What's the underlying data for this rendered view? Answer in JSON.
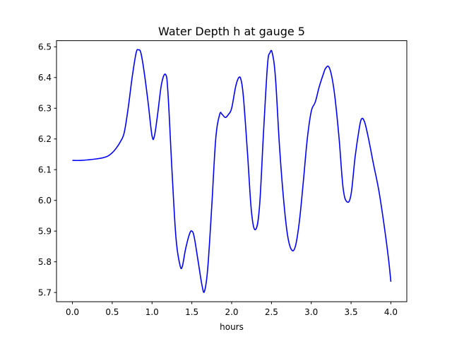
{
  "chart_data": {
    "type": "line",
    "title": "Water Depth h at gauge 5",
    "xlabel": "hours",
    "ylabel": "",
    "xlim": [
      -0.2,
      4.2
    ],
    "ylim": [
      5.67,
      6.52
    ],
    "grid": false,
    "x_ticks": [
      0.0,
      0.5,
      1.0,
      1.5,
      2.0,
      2.5,
      3.0,
      3.5,
      4.0
    ],
    "x_tick_labels": [
      "0.0",
      "0.5",
      "1.0",
      "1.5",
      "2.0",
      "2.5",
      "3.0",
      "3.5",
      "4.0"
    ],
    "y_ticks": [
      5.7,
      5.8,
      5.9,
      6.0,
      6.1,
      6.2,
      6.3,
      6.4,
      6.5
    ],
    "y_tick_labels": [
      "5.7",
      "5.8",
      "5.9",
      "6.0",
      "6.1",
      "6.2",
      "6.3",
      "6.4",
      "6.5"
    ],
    "series": [
      {
        "color": "#0000ff",
        "x": [
          0.0,
          0.1,
          0.2,
          0.3,
          0.35,
          0.4,
          0.45,
          0.5,
          0.55,
          0.6,
          0.65,
          0.7,
          0.75,
          0.8,
          0.83,
          0.86,
          0.9,
          0.95,
          1.0,
          1.03,
          1.07,
          1.12,
          1.17,
          1.2,
          1.25,
          1.3,
          1.35,
          1.38,
          1.42,
          1.47,
          1.5,
          1.53,
          1.58,
          1.63,
          1.66,
          1.7,
          1.75,
          1.8,
          1.85,
          1.88,
          1.92,
          1.96,
          2.0,
          2.05,
          2.09,
          2.12,
          2.15,
          2.2,
          2.25,
          2.3,
          2.35,
          2.4,
          2.45,
          2.48,
          2.51,
          2.55,
          2.6,
          2.65,
          2.7,
          2.75,
          2.8,
          2.85,
          2.9,
          2.95,
          3.0,
          3.05,
          3.1,
          3.15,
          3.18,
          3.22,
          3.26,
          3.3,
          3.35,
          3.4,
          3.45,
          3.5,
          3.55,
          3.6,
          3.63,
          3.67,
          3.72,
          3.78,
          3.85,
          3.92,
          3.97,
          4.0
        ],
        "y": [
          6.13,
          6.13,
          6.132,
          6.135,
          6.137,
          6.14,
          6.145,
          6.155,
          6.17,
          6.19,
          6.22,
          6.3,
          6.4,
          6.48,
          6.49,
          6.48,
          6.42,
          6.32,
          6.21,
          6.21,
          6.28,
          6.38,
          6.41,
          6.35,
          6.1,
          5.88,
          5.79,
          5.785,
          5.84,
          5.89,
          5.9,
          5.88,
          5.8,
          5.72,
          5.705,
          5.78,
          5.98,
          6.2,
          6.28,
          6.28,
          6.27,
          6.28,
          6.3,
          6.37,
          6.4,
          6.39,
          6.33,
          6.15,
          5.96,
          5.905,
          5.98,
          6.22,
          6.44,
          6.48,
          6.48,
          6.4,
          6.18,
          6.01,
          5.89,
          5.84,
          5.85,
          5.93,
          6.06,
          6.2,
          6.29,
          6.32,
          6.37,
          6.41,
          6.43,
          6.435,
          6.4,
          6.33,
          6.2,
          6.04,
          5.995,
          6.02,
          6.14,
          6.23,
          6.265,
          6.255,
          6.2,
          6.12,
          6.03,
          5.91,
          5.81,
          5.735
        ]
      }
    ]
  }
}
